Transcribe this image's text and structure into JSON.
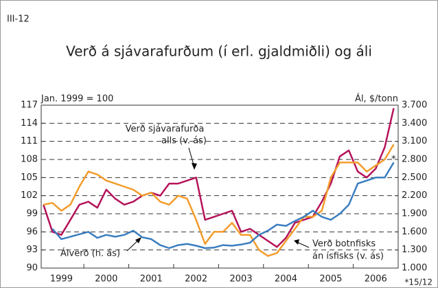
{
  "chart_data": {
    "type": "line",
    "figure_label": "III-12",
    "title": "Verð á sjávarafurðum (í erl. gjaldmiðli) og áli",
    "y_label": "Jan. 1999 = 100",
    "y2_label": "Ál, $/tonn",
    "footnote": "*15/12",
    "annotations": [
      {
        "lines": [
          "Verð sjávarafurða",
          "alls (v. ás)"
        ]
      },
      {
        "lines": [
          "Álverð (h. ás)"
        ]
      },
      {
        "lines": [
          "Verð botnfisks",
          "án ísfisks (v. ás)"
        ]
      },
      {
        "lines": [
          "*"
        ]
      }
    ],
    "x": [
      1999.1,
      1999.3,
      1999.5,
      1999.7,
      1999.9,
      2000.1,
      2000.3,
      2000.5,
      2000.7,
      2000.9,
      2001.1,
      2001.3,
      2001.5,
      2001.7,
      2001.9,
      2002.1,
      2002.3,
      2002.5,
      2002.7,
      2002.9,
      2003.1,
      2003.3,
      2003.5,
      2003.7,
      2003.9,
      2004.1,
      2004.3,
      2004.5,
      2004.7,
      2004.9,
      2005.1,
      2005.3,
      2005.5,
      2005.7,
      2005.9,
      2006.1,
      2006.3,
      2006.5,
      2006.7,
      2006.9
    ],
    "xlim": [
      1999.05,
      2007.0
    ],
    "xticks": [
      {
        "value": 1999.5,
        "label": "1999"
      },
      {
        "value": 2000.5,
        "label": "2000"
      },
      {
        "value": 2001.5,
        "label": "2001"
      },
      {
        "value": 2002.5,
        "label": "2002"
      },
      {
        "value": 2003.5,
        "label": "2003"
      },
      {
        "value": 2004.5,
        "label": "2004"
      },
      {
        "value": 2005.5,
        "label": "2005"
      },
      {
        "value": 2006.5,
        "label": "2006"
      }
    ],
    "x_boundaries": [
      2000,
      2001,
      2002,
      2003,
      2004,
      2005,
      2006
    ],
    "ylim": [
      90,
      117
    ],
    "yticks": [
      90,
      93,
      96,
      99,
      102,
      105,
      108,
      111,
      114,
      117
    ],
    "y2lim": [
      1000,
      3700
    ],
    "y2ticks": [
      {
        "value": 1000,
        "label": "1.000"
      },
      {
        "value": 1300,
        "label": "1.300"
      },
      {
        "value": 1600,
        "label": "1.600"
      },
      {
        "value": 1900,
        "label": "1.900"
      },
      {
        "value": 2200,
        "label": "2.200"
      },
      {
        "value": 2500,
        "label": "2.500"
      },
      {
        "value": 2800,
        "label": "2.800"
      },
      {
        "value": 3100,
        "label": "3.100"
      },
      {
        "value": 3400,
        "label": "3.400"
      },
      {
        "value": 3700,
        "label": "3.700"
      }
    ],
    "grid": true,
    "series": [
      {
        "name": "Verð sjávarafurða alls",
        "color": "#b5135a",
        "values": [
          100.5,
          96,
          95.5,
          98,
          100.5,
          101,
          100,
          103,
          101.5,
          100.5,
          101,
          102,
          102.5,
          102,
          104,
          104,
          104.5,
          105,
          98,
          98.5,
          99,
          99.5,
          96,
          96.5,
          95.5,
          94.5,
          93.5,
          95,
          97.5,
          98,
          98.5,
          101,
          104,
          108.5,
          109.5,
          106,
          105,
          106.5,
          110,
          116.5
        ]
      },
      {
        "name": "Verð botnfisks án ísfisks",
        "color": "#f39c2a",
        "values": [
          100.5,
          100.8,
          99.5,
          100.5,
          103.5,
          106,
          105.5,
          104.5,
          104,
          103.5,
          103,
          102,
          102.5,
          101,
          100.5,
          102,
          101.5,
          98,
          94,
          96,
          96,
          97.5,
          95.5,
          95.5,
          93,
          92,
          92.5,
          94.5,
          96.5,
          98.5,
          98.5,
          99.5,
          105,
          107.5,
          107.5,
          107.5,
          106,
          107,
          108,
          110.5
        ]
      },
      {
        "name": "Álverð",
        "color": "#3a7dbf",
        "axis": "y2",
        "values": [
          null,
          1650,
          1480,
          1520,
          1560,
          1600,
          1500,
          1550,
          1520,
          1550,
          1620,
          1510,
          1480,
          1380,
          1330,
          1380,
          1400,
          1370,
          1330,
          1340,
          1380,
          1370,
          1390,
          1420,
          1550,
          1620,
          1720,
          1700,
          1780,
          1850,
          1950,
          1850,
          1800,
          1900,
          2050,
          2400,
          2450,
          2500,
          2500,
          2750
        ]
      }
    ]
  }
}
